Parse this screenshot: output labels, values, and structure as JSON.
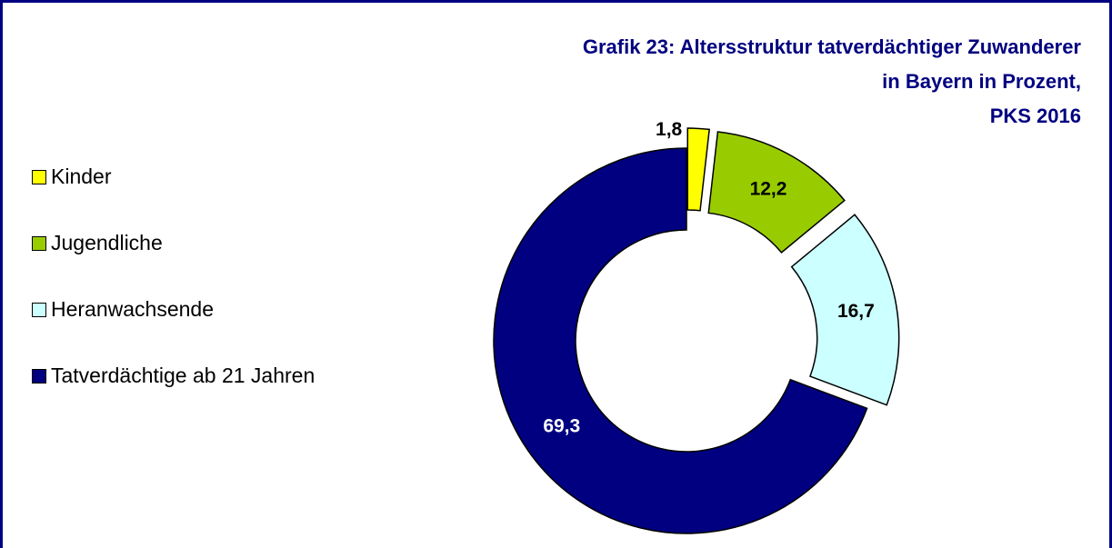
{
  "chart_data": {
    "type": "donut",
    "title": [
      "Grafik 23: Altersstruktur tatverdächtiger Zuwanderer",
      "in Bayern in Prozent,",
      "PKS 2016"
    ],
    "categories": [
      "Kinder",
      "Jugendliche",
      "Heranwachsende",
      "Tatverdächtige ab 21 Jahren"
    ],
    "values": [
      1.8,
      12.2,
      16.7,
      69.3
    ],
    "value_labels": [
      "1,8",
      "12,2",
      "16,7",
      "69,3"
    ],
    "colors": [
      "#ffff00",
      "#99cc00",
      "#ccffff",
      "#000080"
    ],
    "legend": "left"
  }
}
